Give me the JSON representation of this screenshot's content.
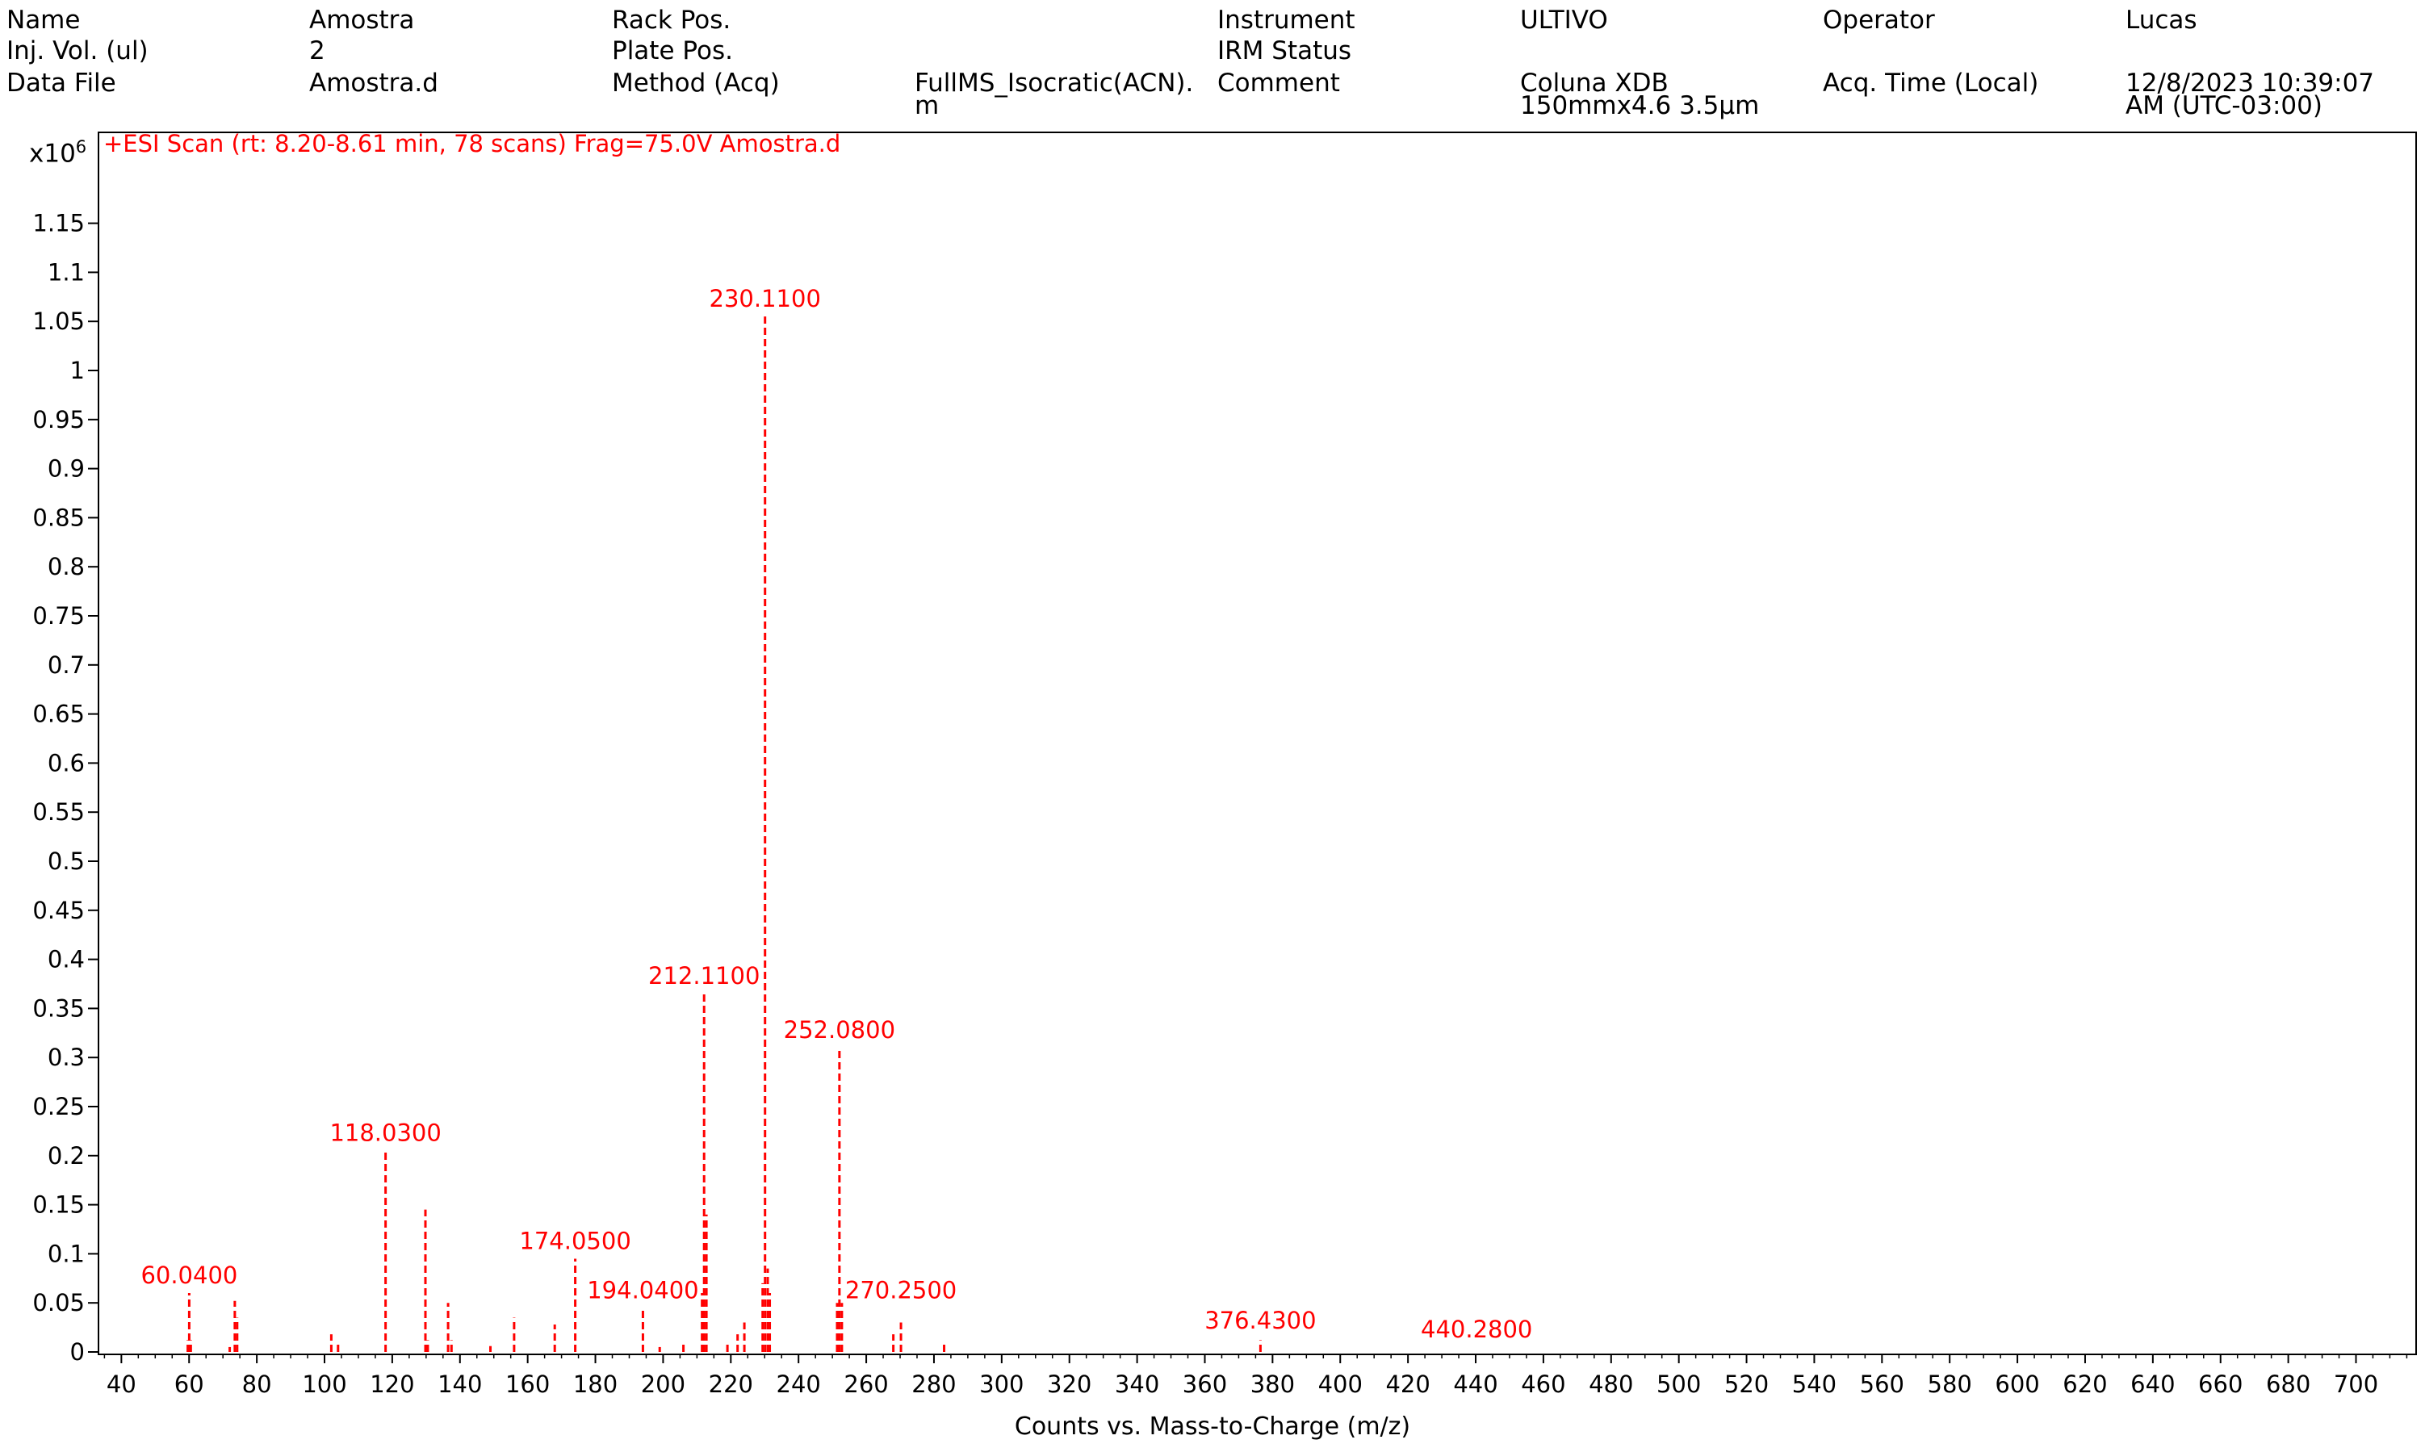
{
  "header": {
    "name_label": "Name",
    "name_value": "Amostra",
    "injvol_label": "Inj. Vol. (ul)",
    "injvol_value": "2",
    "datafile_label": "Data File",
    "datafile_value": "Amostra.d",
    "rack_label": "Rack Pos.",
    "plate_label": "Plate Pos.",
    "method_label": "Method (Acq)",
    "method_value_line1": "FullMS_Isocratic(ACN).",
    "method_value_line2": "m",
    "instrument_label": "Instrument",
    "instrument_value": "ULTIVO",
    "irm_label": "IRM Status",
    "comment_label": "Comment",
    "comment_value_line1": "Coluna XDB",
    "comment_value_line2": "150mmx4.6 3.5µm",
    "operator_label": "Operator",
    "operator_value": "Lucas",
    "acqtime_label": "Acq. Time (Local)",
    "acqtime_value_line1": "12/8/2023 10:39:07",
    "acqtime_value_line2": "AM (UTC-03:00)"
  },
  "chart_data": {
    "type": "bar",
    "title": "+ESI Scan (rt: 8.20-8.61 min, 78 scans) Frag=75.0V Amostra.d",
    "xlabel": "Counts vs. Mass-to-Charge (m/z)",
    "ylabel_multiplier": "x10",
    "ylabel_multiplier_exp": "6",
    "xlim": [
      33,
      718
    ],
    "ylim": [
      0,
      1.2
    ],
    "xticks": [
      40,
      60,
      80,
      100,
      120,
      140,
      160,
      180,
      200,
      220,
      240,
      260,
      280,
      300,
      320,
      340,
      360,
      380,
      400,
      420,
      440,
      460,
      480,
      500,
      520,
      540,
      560,
      580,
      600,
      620,
      640,
      660,
      680,
      700
    ],
    "yticks": [
      0,
      0.05,
      0.1,
      0.15,
      0.2,
      0.25,
      0.3,
      0.35,
      0.4,
      0.45,
      0.5,
      0.55,
      0.6,
      0.65,
      0.7,
      0.75,
      0.8,
      0.85,
      0.9,
      0.95,
      1,
      1.05,
      1.1,
      1.15
    ],
    "ytick_labels": [
      "0",
      "0.05",
      "0.1",
      "0.15",
      "0.2",
      "0.25",
      "0.3",
      "0.35",
      "0.4",
      "0.45",
      "0.5",
      "0.55",
      "0.6",
      "0.65",
      "0.7",
      "0.75",
      "0.8",
      "0.85",
      "0.9",
      "0.95",
      "1",
      "1.05",
      "1.1",
      "1.15"
    ],
    "color": "#ff0000",
    "peaks": [
      {
        "mz": 59.6,
        "intensity": 0.012
      },
      {
        "mz": 60.04,
        "intensity": 0.06
      },
      {
        "mz": 60.5,
        "intensity": 0.012
      },
      {
        "mz": 72.0,
        "intensity": 0.005
      },
      {
        "mz": 73.5,
        "intensity": 0.052
      },
      {
        "mz": 74.2,
        "intensity": 0.035
      },
      {
        "mz": 102.0,
        "intensity": 0.018
      },
      {
        "mz": 104.0,
        "intensity": 0.008
      },
      {
        "mz": 118.03,
        "intensity": 0.205
      },
      {
        "mz": 129.8,
        "intensity": 0.145
      },
      {
        "mz": 130.5,
        "intensity": 0.012
      },
      {
        "mz": 136.5,
        "intensity": 0.05
      },
      {
        "mz": 137.5,
        "intensity": 0.012
      },
      {
        "mz": 149.0,
        "intensity": 0.006
      },
      {
        "mz": 156.0,
        "intensity": 0.035
      },
      {
        "mz": 168.0,
        "intensity": 0.028
      },
      {
        "mz": 174.05,
        "intensity": 0.095
      },
      {
        "mz": 194.04,
        "intensity": 0.045
      },
      {
        "mz": 199.0,
        "intensity": 0.005
      },
      {
        "mz": 206.0,
        "intensity": 0.008
      },
      {
        "mz": 211.5,
        "intensity": 0.06
      },
      {
        "mz": 212.11,
        "intensity": 0.365
      },
      {
        "mz": 212.8,
        "intensity": 0.14
      },
      {
        "mz": 219.0,
        "intensity": 0.01
      },
      {
        "mz": 222.0,
        "intensity": 0.018
      },
      {
        "mz": 224.0,
        "intensity": 0.03
      },
      {
        "mz": 229.4,
        "intensity": 0.07
      },
      {
        "mz": 230.11,
        "intensity": 1.055
      },
      {
        "mz": 230.9,
        "intensity": 0.085
      },
      {
        "mz": 231.5,
        "intensity": 0.06
      },
      {
        "mz": 251.4,
        "intensity": 0.05
      },
      {
        "mz": 252.08,
        "intensity": 0.31
      },
      {
        "mz": 252.8,
        "intensity": 0.05
      },
      {
        "mz": 268.0,
        "intensity": 0.018
      },
      {
        "mz": 270.25,
        "intensity": 0.03
      },
      {
        "mz": 283.0,
        "intensity": 0.008
      },
      {
        "mz": 376.43,
        "intensity": 0.012
      }
    ],
    "annotations": [
      {
        "label": "60.0400",
        "mz": 60.04,
        "y": 0.06
      },
      {
        "label": "118.0300",
        "mz": 118.03,
        "y": 0.205
      },
      {
        "label": "174.0500",
        "mz": 174.05,
        "y": 0.095
      },
      {
        "label": "194.0400",
        "mz": 194.04,
        "y": 0.045
      },
      {
        "label": "212.1100",
        "mz": 212.11,
        "y": 0.365
      },
      {
        "label": "230.1100",
        "mz": 230.11,
        "y": 1.055
      },
      {
        "label": "252.0800",
        "mz": 252.08,
        "y": 0.31
      },
      {
        "label": "270.2500",
        "mz": 270.25,
        "y": 0.045
      },
      {
        "label": "376.4300",
        "mz": 376.43,
        "y": 0.014
      },
      {
        "label": "440.2800",
        "mz": 440.28,
        "y": 0.005
      }
    ]
  }
}
